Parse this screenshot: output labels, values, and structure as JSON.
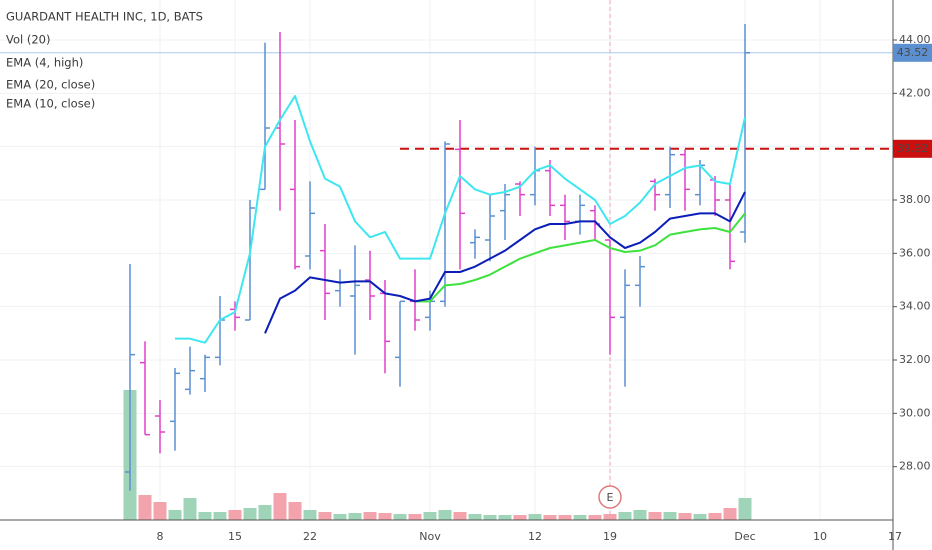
{
  "chart_data": {
    "type": "ohlc",
    "title": "GUARDANT HEALTH INC, 1D, BATS",
    "volume_label": "Vol (20)",
    "categories": [
      null,
      null,
      "8",
      null,
      null,
      null,
      null,
      "15",
      null,
      null,
      null,
      null,
      "22",
      null,
      null,
      null,
      null,
      null,
      null,
      null,
      "Nov",
      null,
      null,
      null,
      null,
      null,
      null,
      "12",
      null,
      null,
      null,
      null,
      "19",
      null,
      null,
      null,
      null,
      null,
      null,
      null,
      null,
      "Dec",
      null,
      null,
      null,
      null,
      "10",
      null,
      null,
      null,
      null,
      "17"
    ],
    "open": [
      27.8,
      31.9,
      29.9,
      29.7,
      30.9,
      31.3,
      32.1,
      33.9,
      33.5,
      38.4,
      40.7,
      38.4,
      35.9,
      36.1,
      34.6,
      34.4,
      35.0,
      34.5,
      32.1,
      34.2,
      33.6,
      34.2,
      39.9,
      36.4,
      36.5,
      37.6,
      38.6,
      38.2,
      39.1,
      37.8,
      37.2,
      37.6,
      36.5,
      33.6,
      34.8,
      38.7,
      38.2,
      39.7,
      38.2,
      38.75,
      38.0,
      36.8,
      null,
      null,
      null,
      null,
      null,
      null,
      null,
      null,
      null,
      null
    ],
    "high": [
      35.6,
      32.7,
      30.5,
      31.7,
      32.5,
      32.2,
      34.4,
      34.2,
      38.0,
      43.9,
      44.3,
      41.0,
      38.7,
      37.1,
      35.4,
      36.3,
      36.1,
      35.0,
      34.2,
      35.4,
      34.6,
      40.2,
      41.0,
      36.9,
      38.2,
      38.6,
      38.7,
      40.0,
      39.5,
      38.2,
      38.2,
      37.8,
      36.5,
      35.4,
      35.9,
      38.8,
      40.0,
      39.9,
      39.5,
      38.9,
      38.6,
      44.6,
      null,
      null,
      null,
      null,
      null,
      null,
      null,
      null,
      null,
      null
    ],
    "low": [
      27.1,
      29.2,
      28.5,
      28.6,
      30.7,
      30.8,
      31.8,
      33.1,
      33.5,
      38.4,
      37.6,
      35.4,
      35.4,
      33.5,
      34.0,
      32.2,
      33.5,
      31.5,
      31.0,
      33.1,
      33.1,
      34.0,
      35.4,
      35.8,
      35.7,
      36.5,
      37.4,
      37.8,
      37.4,
      36.5,
      36.7,
      36.5,
      32.2,
      31.0,
      34.0,
      37.6,
      37.7,
      37.6,
      37.8,
      37.4,
      35.4,
      36.4,
      null,
      null,
      null,
      null,
      null,
      null,
      null,
      null,
      null,
      null
    ],
    "close": [
      32.2,
      29.2,
      29.3,
      31.5,
      31.6,
      32.1,
      33.5,
      33.6,
      37.7,
      40.7,
      40.1,
      35.5,
      37.5,
      34.5,
      34.9,
      34.8,
      34.4,
      32.7,
      34.2,
      33.5,
      34.2,
      40.1,
      37.5,
      36.6,
      37.4,
      38.2,
      38.2,
      39.1,
      37.8,
      37.2,
      37.8,
      37.1,
      33.6,
      34.8,
      35.5,
      38.2,
      39.7,
      38.4,
      39.3,
      38.0,
      35.7,
      43.52,
      null,
      null,
      null,
      null,
      null,
      null,
      null,
      null,
      null,
      null
    ],
    "volume": [
      130,
      25,
      18,
      10,
      22,
      8,
      8,
      10,
      12,
      15,
      27,
      18,
      10,
      8,
      6,
      7,
      8,
      7,
      6,
      6,
      8,
      10,
      8,
      6,
      5,
      5,
      5,
      6,
      5,
      5,
      5,
      5,
      6,
      8,
      10,
      8,
      8,
      7,
      6,
      7,
      12,
      22,
      null,
      null,
      null,
      null,
      null,
      null,
      null,
      null,
      null,
      null
    ],
    "up_color": "#5b8fd0",
    "down_color": "#e040c8",
    "volume_up_color": "#9fd4b8",
    "volume_down_color": "#f2a3ab",
    "series": [
      {
        "name": "EMA (4, high)",
        "color": "#3ee6f0",
        "values": [
          null,
          null,
          null,
          32.8,
          32.8,
          32.65,
          33.5,
          33.8,
          36.0,
          40.0,
          41.0,
          41.9,
          40.2,
          38.8,
          38.5,
          37.2,
          36.6,
          36.8,
          35.8,
          35.8,
          35.8,
          37.5,
          38.9,
          38.4,
          38.2,
          38.3,
          38.5,
          39.1,
          39.3,
          38.8,
          38.4,
          38.0,
          37.1,
          37.4,
          37.9,
          38.6,
          38.9,
          39.2,
          39.3,
          38.7,
          38.6,
          41.1,
          null,
          null,
          null,
          null,
          null,
          null,
          null,
          null,
          null,
          null
        ]
      },
      {
        "name": "EMA (20, close)",
        "color": "#3ee23e",
        "values": [
          null,
          null,
          null,
          null,
          null,
          null,
          null,
          null,
          null,
          null,
          null,
          null,
          null,
          null,
          null,
          null,
          null,
          null,
          null,
          34.2,
          34.2,
          34.8,
          34.85,
          35.0,
          35.2,
          35.5,
          35.8,
          36.0,
          36.2,
          36.3,
          36.4,
          36.5,
          36.2,
          36.05,
          36.1,
          36.3,
          36.7,
          36.8,
          36.9,
          36.95,
          36.8,
          37.5,
          null,
          null,
          null,
          null,
          null,
          null,
          null,
          null,
          null,
          null
        ]
      },
      {
        "name": "EMA (10, close)",
        "color": "#0b1fb8",
        "values": [
          null,
          null,
          null,
          null,
          null,
          null,
          null,
          null,
          null,
          33.0,
          34.3,
          34.6,
          35.1,
          35.0,
          34.9,
          34.95,
          34.95,
          34.5,
          34.4,
          34.2,
          34.3,
          35.3,
          35.3,
          35.5,
          35.8,
          36.1,
          36.5,
          36.9,
          37.1,
          37.1,
          37.2,
          37.2,
          36.6,
          36.2,
          36.4,
          36.8,
          37.3,
          37.4,
          37.5,
          37.5,
          37.2,
          38.3,
          null,
          null,
          null,
          null,
          null,
          null,
          null,
          null,
          null,
          null
        ]
      }
    ],
    "ylim": [
      26,
      45.5
    ],
    "yticks": [
      {
        "value": 28,
        "label": "28.00"
      },
      {
        "value": 30,
        "label": "30.00"
      },
      {
        "value": 32,
        "label": "32.00"
      },
      {
        "value": 34,
        "label": "34.00"
      },
      {
        "value": 36,
        "label": "36.00"
      },
      {
        "value": 38,
        "label": "38.00"
      },
      {
        "value": 40,
        "label": "40.00"
      },
      {
        "value": 42,
        "label": "42.00"
      },
      {
        "value": 44,
        "label": "44.00"
      }
    ],
    "grid": true,
    "last_price": 43.52,
    "last_price_color": "#5b8fd0",
    "resistance": 39.92,
    "resistance_color": "#cc1010",
    "event": {
      "label": "E",
      "category": "19"
    }
  }
}
